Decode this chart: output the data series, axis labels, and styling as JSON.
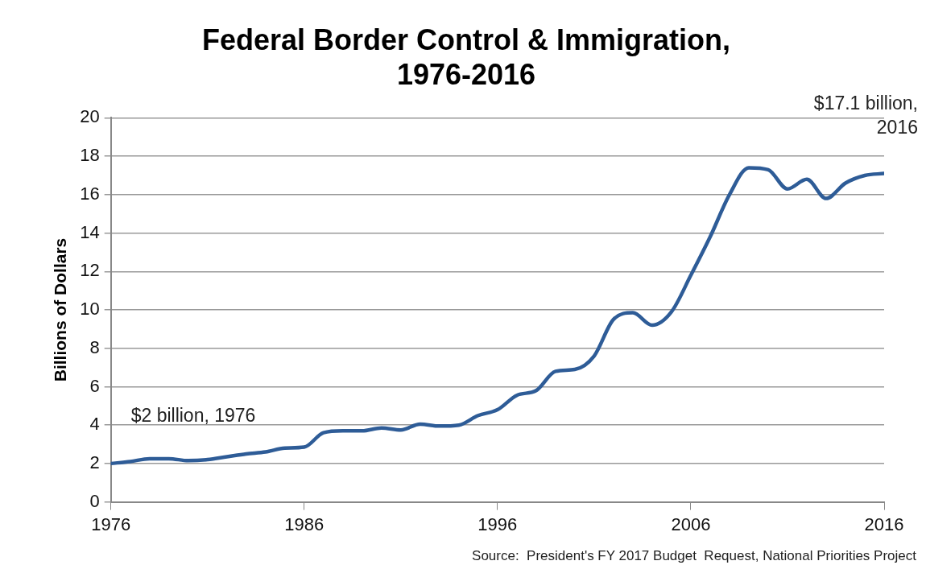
{
  "chart_data": {
    "type": "line",
    "title": "Federal Border Control & Immigration, 1976-2016",
    "ylabel": "Billions of Dollars",
    "x": [
      1976,
      1977,
      1978,
      1979,
      1980,
      1981,
      1982,
      1983,
      1984,
      1985,
      1986,
      1987,
      1988,
      1989,
      1990,
      1991,
      1992,
      1993,
      1994,
      1995,
      1996,
      1997,
      1998,
      1999,
      2000,
      2001,
      2002,
      2003,
      2004,
      2005,
      2006,
      2007,
      2008,
      2009,
      2010,
      2011,
      2012,
      2013,
      2014,
      2015,
      2016
    ],
    "series": [
      {
        "color": "#2e5c97",
        "values": [
          2.0,
          2.1,
          2.25,
          2.25,
          2.15,
          2.2,
          2.35,
          2.5,
          2.6,
          2.8,
          2.85,
          3.6,
          3.7,
          3.7,
          3.85,
          3.75,
          4.05,
          3.95,
          4.0,
          4.5,
          4.8,
          5.55,
          5.8,
          6.8,
          6.9,
          7.6,
          9.5,
          9.85,
          9.2,
          9.9,
          11.8,
          13.8,
          16.0,
          17.4,
          17.3,
          16.3,
          16.8,
          15.8,
          16.6,
          17.0,
          17.1
        ]
      }
    ],
    "xlim": [
      1976,
      2016
    ],
    "xticks": [
      1976,
      1986,
      1996,
      2006,
      2016
    ],
    "ylim": [
      0,
      20
    ],
    "yticks": [
      0,
      2,
      4,
      6,
      8,
      10,
      12,
      14,
      16,
      18,
      20
    ],
    "grid": "y",
    "legend": false,
    "marker": "none",
    "line_style": "solid",
    "annotations": [
      "$2 billion, 1976",
      "$17.1 billion, 2016",
      "Source:  President's FY 2017 Budget  Request, National Priorities Project"
    ]
  }
}
